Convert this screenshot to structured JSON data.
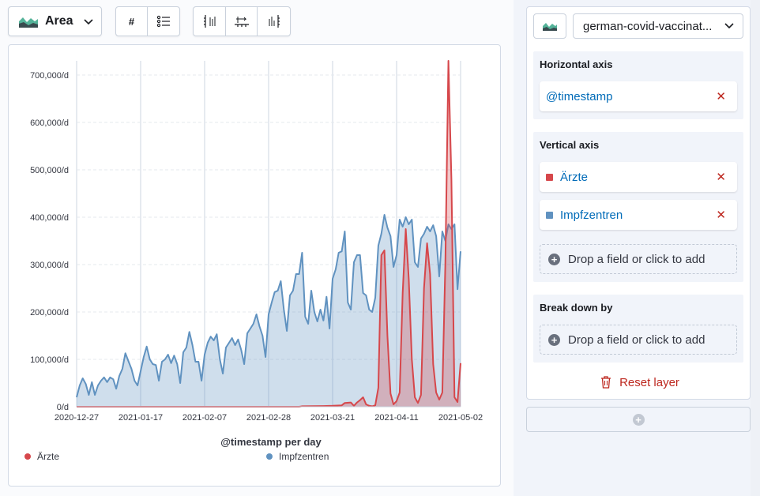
{
  "toolbar": {
    "chart_type_label": "Area",
    "value_labels_glyph": "#",
    "colors": {
      "area_icon": "#54b399",
      "text": "#1a1c21"
    }
  },
  "layer": {
    "datasource_label": "german-covid-vaccinat...",
    "horizontal_axis": {
      "title": "Horizontal axis",
      "field": "@timestamp"
    },
    "vertical_axis": {
      "title": "Vertical axis",
      "fields": [
        {
          "label": "Ärzte",
          "color": "#d36086"
        },
        {
          "label": "Impfzentren",
          "color": "#6092c0"
        }
      ],
      "drop_label": "Drop a field or click to add"
    },
    "break_down": {
      "title": "Break down by",
      "drop_label": "Drop a field or click to add"
    },
    "reset_label": "Reset layer"
  },
  "icons": [
    "area-chart-icon",
    "chevron-down-icon",
    "list-icon",
    "axis-left-icon",
    "axis-bottom-icon",
    "axis-right-icon",
    "remove-icon",
    "add-icon",
    "trash-icon"
  ],
  "chart_data": {
    "type": "area",
    "xlabel": "@timestamp per day",
    "ylabel": "",
    "ylim": [
      0,
      730000
    ],
    "xlim": [
      "2020-12-27",
      "2021-05-02"
    ],
    "x_ticks": [
      "2020-12-27",
      "2021-01-17",
      "2021-02-07",
      "2021-02-28",
      "2021-03-21",
      "2021-04-11",
      "2021-05-02"
    ],
    "y_ticks": [
      "0/d",
      "100,000/d",
      "200,000/d",
      "300,000/d",
      "400,000/d",
      "500,000/d",
      "600,000/d",
      "700,000/d"
    ],
    "legend_position": "bottom",
    "grid": true,
    "series": [
      {
        "name": "Ärzte",
        "color": "#d36086",
        "points": [
          [
            "2020-12-27",
            0
          ],
          [
            "2021-03-10",
            0
          ],
          [
            "2021-03-11",
            1000
          ],
          [
            "2021-03-18",
            1500
          ],
          [
            "2021-03-21",
            2000
          ],
          [
            "2021-03-24",
            3000
          ],
          [
            "2021-03-25",
            8000
          ],
          [
            "2021-03-27",
            9000
          ],
          [
            "2021-03-28",
            2000
          ],
          [
            "2021-03-29",
            9000
          ],
          [
            "2021-03-30",
            14000
          ],
          [
            "2021-03-31",
            20000
          ],
          [
            "2021-04-01",
            5000
          ],
          [
            "2021-04-02",
            2000
          ],
          [
            "2021-04-03",
            1000
          ],
          [
            "2021-04-04",
            3000
          ],
          [
            "2021-04-05",
            40000
          ],
          [
            "2021-04-06",
            320000
          ],
          [
            "2021-04-07",
            330000
          ],
          [
            "2021-04-08",
            150000
          ],
          [
            "2021-04-09",
            28000
          ],
          [
            "2021-04-10",
            5000
          ],
          [
            "2021-04-11",
            12000
          ],
          [
            "2021-04-12",
            30000
          ],
          [
            "2021-04-13",
            240000
          ],
          [
            "2021-04-14",
            375000
          ],
          [
            "2021-04-15",
            270000
          ],
          [
            "2021-04-16",
            100000
          ],
          [
            "2021-04-17",
            20000
          ],
          [
            "2021-04-18",
            8000
          ],
          [
            "2021-04-19",
            25000
          ],
          [
            "2021-04-20",
            250000
          ],
          [
            "2021-04-21",
            345000
          ],
          [
            "2021-04-22",
            280000
          ],
          [
            "2021-04-23",
            90000
          ],
          [
            "2021-04-24",
            30000
          ],
          [
            "2021-04-25",
            15000
          ],
          [
            "2021-04-26",
            30000
          ],
          [
            "2021-04-27",
            300000
          ],
          [
            "2021-04-28",
            730000
          ],
          [
            "2021-04-29",
            480000
          ],
          [
            "2021-04-30",
            20000
          ],
          [
            "2021-05-01",
            10000
          ],
          [
            "2021-05-02",
            92000
          ]
        ]
      },
      {
        "name": "Impfzentren",
        "color": "#6092c0",
        "points": [
          [
            "2020-12-27",
            20000
          ],
          [
            "2020-12-28",
            45000
          ],
          [
            "2020-12-29",
            60000
          ],
          [
            "2020-12-30",
            48000
          ],
          [
            "2020-12-31",
            25000
          ],
          [
            "2021-01-01",
            52000
          ],
          [
            "2021-01-02",
            25000
          ],
          [
            "2021-01-03",
            45000
          ],
          [
            "2021-01-04",
            55000
          ],
          [
            "2021-01-05",
            62000
          ],
          [
            "2021-01-06",
            52000
          ],
          [
            "2021-01-07",
            62000
          ],
          [
            "2021-01-08",
            58000
          ],
          [
            "2021-01-09",
            38000
          ],
          [
            "2021-01-10",
            65000
          ],
          [
            "2021-01-11",
            80000
          ],
          [
            "2021-01-12",
            113000
          ],
          [
            "2021-01-13",
            96000
          ],
          [
            "2021-01-14",
            80000
          ],
          [
            "2021-01-15",
            55000
          ],
          [
            "2021-01-16",
            45000
          ],
          [
            "2021-01-17",
            75000
          ],
          [
            "2021-01-18",
            105000
          ],
          [
            "2021-01-19",
            127000
          ],
          [
            "2021-01-20",
            100000
          ],
          [
            "2021-01-21",
            90000
          ],
          [
            "2021-01-22",
            88000
          ],
          [
            "2021-01-23",
            55000
          ],
          [
            "2021-01-24",
            95000
          ],
          [
            "2021-01-25",
            100000
          ],
          [
            "2021-01-26",
            110000
          ],
          [
            "2021-01-27",
            92000
          ],
          [
            "2021-01-28",
            108000
          ],
          [
            "2021-01-29",
            90000
          ],
          [
            "2021-01-30",
            50000
          ],
          [
            "2021-01-31",
            115000
          ],
          [
            "2021-02-01",
            125000
          ],
          [
            "2021-02-02",
            158000
          ],
          [
            "2021-02-03",
            130000
          ],
          [
            "2021-02-04",
            95000
          ],
          [
            "2021-02-05",
            95000
          ],
          [
            "2021-02-06",
            55000
          ],
          [
            "2021-02-07",
            110000
          ],
          [
            "2021-02-08",
            135000
          ],
          [
            "2021-02-09",
            148000
          ],
          [
            "2021-02-10",
            140000
          ],
          [
            "2021-02-11",
            153000
          ],
          [
            "2021-02-12",
            100000
          ],
          [
            "2021-02-13",
            70000
          ],
          [
            "2021-02-14",
            125000
          ],
          [
            "2021-02-15",
            135000
          ],
          [
            "2021-02-16",
            145000
          ],
          [
            "2021-02-17",
            130000
          ],
          [
            "2021-02-18",
            142000
          ],
          [
            "2021-02-19",
            120000
          ],
          [
            "2021-02-20",
            90000
          ],
          [
            "2021-02-21",
            155000
          ],
          [
            "2021-02-22",
            165000
          ],
          [
            "2021-02-23",
            175000
          ],
          [
            "2021-02-24",
            195000
          ],
          [
            "2021-02-25",
            170000
          ],
          [
            "2021-02-26",
            150000
          ],
          [
            "2021-02-27",
            105000
          ],
          [
            "2021-02-28",
            195000
          ],
          [
            "2021-03-01",
            220000
          ],
          [
            "2021-03-02",
            242000
          ],
          [
            "2021-03-03",
            245000
          ],
          [
            "2021-03-04",
            265000
          ],
          [
            "2021-03-05",
            205000
          ],
          [
            "2021-03-06",
            160000
          ],
          [
            "2021-03-07",
            235000
          ],
          [
            "2021-03-08",
            245000
          ],
          [
            "2021-03-09",
            280000
          ],
          [
            "2021-03-10",
            280000
          ],
          [
            "2021-03-11",
            325000
          ],
          [
            "2021-03-12",
            190000
          ],
          [
            "2021-03-13",
            175000
          ],
          [
            "2021-03-14",
            245000
          ],
          [
            "2021-03-15",
            200000
          ],
          [
            "2021-03-16",
            180000
          ],
          [
            "2021-03-17",
            205000
          ],
          [
            "2021-03-18",
            182000
          ],
          [
            "2021-03-19",
            232000
          ],
          [
            "2021-03-20",
            165000
          ],
          [
            "2021-03-21",
            270000
          ],
          [
            "2021-03-22",
            290000
          ],
          [
            "2021-03-23",
            325000
          ],
          [
            "2021-03-24",
            328000
          ],
          [
            "2021-03-25",
            370000
          ],
          [
            "2021-03-26",
            220000
          ],
          [
            "2021-03-27",
            205000
          ],
          [
            "2021-03-28",
            305000
          ],
          [
            "2021-03-29",
            320000
          ],
          [
            "2021-03-30",
            320000
          ],
          [
            "2021-03-31",
            240000
          ],
          [
            "2021-04-01",
            235000
          ],
          [
            "2021-04-02",
            205000
          ],
          [
            "2021-04-03",
            200000
          ],
          [
            "2021-04-04",
            230000
          ],
          [
            "2021-04-05",
            340000
          ],
          [
            "2021-04-06",
            365000
          ],
          [
            "2021-04-07",
            405000
          ],
          [
            "2021-04-08",
            378000
          ],
          [
            "2021-04-09",
            360000
          ],
          [
            "2021-04-10",
            295000
          ],
          [
            "2021-04-11",
            320000
          ],
          [
            "2021-04-12",
            395000
          ],
          [
            "2021-04-13",
            380000
          ],
          [
            "2021-04-14",
            400000
          ],
          [
            "2021-04-15",
            385000
          ],
          [
            "2021-04-16",
            395000
          ],
          [
            "2021-04-17",
            305000
          ],
          [
            "2021-04-18",
            295000
          ],
          [
            "2021-04-19",
            355000
          ],
          [
            "2021-04-20",
            365000
          ],
          [
            "2021-04-21",
            380000
          ],
          [
            "2021-04-22",
            370000
          ],
          [
            "2021-04-23",
            383000
          ],
          [
            "2021-04-24",
            360000
          ],
          [
            "2021-04-25",
            275000
          ],
          [
            "2021-04-26",
            370000
          ],
          [
            "2021-04-27",
            350000
          ],
          [
            "2021-04-28",
            385000
          ],
          [
            "2021-04-29",
            375000
          ],
          [
            "2021-04-30",
            385000
          ],
          [
            "2021-05-01",
            248000
          ],
          [
            "2021-05-02",
            328000
          ]
        ]
      }
    ]
  }
}
